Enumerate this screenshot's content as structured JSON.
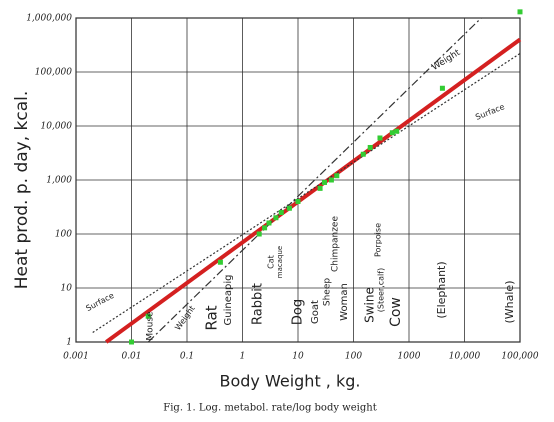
{
  "chart_data": {
    "type": "line",
    "y_label": "Heat prod. p. day, kcal.",
    "x_label": "Body Weight , kg.",
    "caption": "Fig. 1. Log. metabol. rate/log body weight",
    "xscale": "log",
    "yscale": "log",
    "grid": true,
    "xlim": [
      0.001,
      100000
    ],
    "ylim": [
      1,
      1000000
    ],
    "xticks": [
      0.001,
      0.01,
      0.1,
      1,
      10,
      100,
      1000,
      {
        "value": 10000,
        "label": "10,000"
      },
      {
        "value": 100000,
        "label": "100,000"
      }
    ],
    "yticks": [
      1,
      10,
      100,
      {
        "value": 1000,
        "label": "1,000"
      },
      {
        "value": 10000,
        "label": "10,000"
      },
      {
        "value": 100000,
        "label": "100,000"
      },
      {
        "value": 1000000,
        "label": "1,000,000"
      }
    ],
    "series": [
      {
        "color": "#d42020",
        "style": "solid",
        "x": [
          0.0035,
          100000
        ],
        "values": [
          1,
          400000
        ]
      },
      {
        "color": "#333333",
        "style": "dashdot",
        "x": [
          0.02,
          20000
        ],
        "values": [
          1,
          1000000
        ]
      },
      {
        "color": "#333333",
        "style": "dotted",
        "x": [
          0.002,
          100000
        ],
        "values": [
          1.5,
          220000
        ]
      }
    ],
    "points": {
      "color": "#33cc33",
      "x": [
        0.01,
        0.02,
        0.4,
        2,
        2.5,
        3,
        4,
        5,
        7,
        10,
        25,
        30,
        40,
        50,
        150,
        200,
        300,
        500,
        600,
        4000,
        100000
      ],
      "values": [
        1,
        3,
        30,
        100,
        130,
        160,
        200,
        250,
        300,
        400,
        700,
        900,
        1000,
        1200,
        3000,
        4000,
        6000,
        7500,
        8000,
        50000,
        1300000
      ]
    },
    "annotations": [
      "Mouse",
      "Rat",
      "Guineapig",
      "Rabbit",
      "Cat",
      "macaque",
      "Dog",
      "Goat",
      "Sheep",
      "Chimpanzee",
      "Woman",
      "Swine",
      "(Steer,calf)",
      "Porpoise",
      "Cow",
      "(Elephant)",
      "(Whale)",
      "Weight",
      "Surface",
      "Surface",
      "Weight"
    ]
  }
}
